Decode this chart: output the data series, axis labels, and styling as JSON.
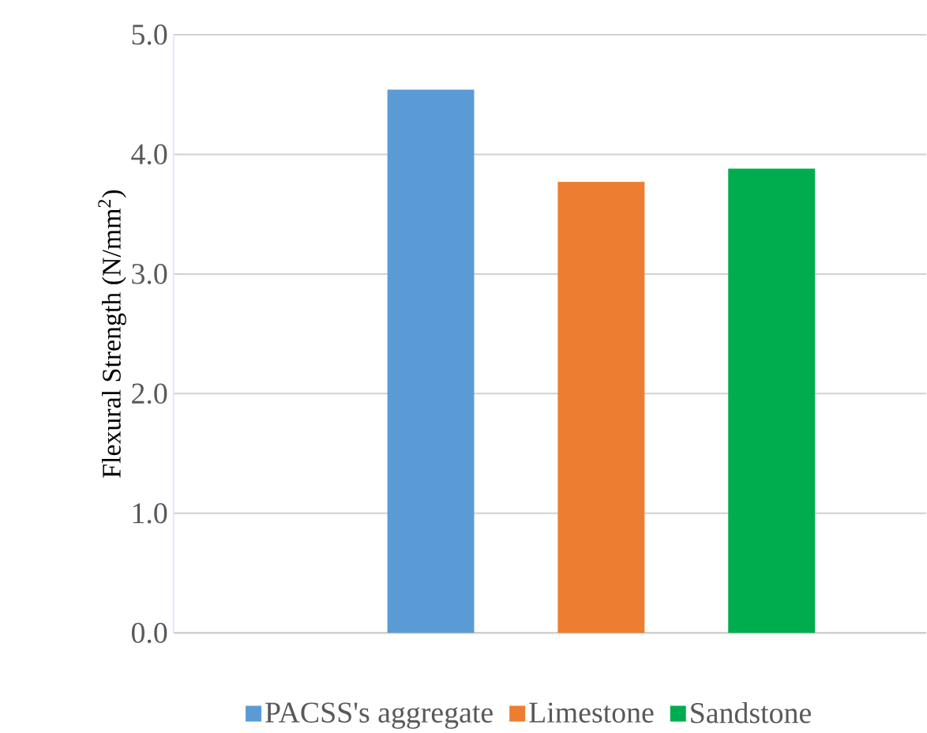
{
  "chart_data": {
    "type": "bar",
    "ylabel": "Flexural Strength (N/mm$^{2}$)",
    "categories": [
      null
    ],
    "series": [
      {
        "name": "PACSS's aggregate",
        "color": "#5b9bd5",
        "values": [
          4.54
        ]
      },
      {
        "name": "Limestone",
        "color": "#ed7d31",
        "values": [
          3.77
        ]
      },
      {
        "name": "Sandstone",
        "color": "#00ad4e",
        "values": [
          3.88
        ]
      }
    ],
    "ylim": [
      0,
      5
    ],
    "yticks": [
      {
        "value": 0,
        "label": "0.0"
      },
      {
        "value": 1,
        "label": "1.0"
      },
      {
        "value": 2,
        "label": "2.0"
      },
      {
        "value": 3,
        "label": "3.0"
      },
      {
        "value": 4,
        "label": "4.0"
      },
      {
        "value": 5,
        "label": "5.0"
      }
    ],
    "grid": "y",
    "legend": "bottom"
  }
}
